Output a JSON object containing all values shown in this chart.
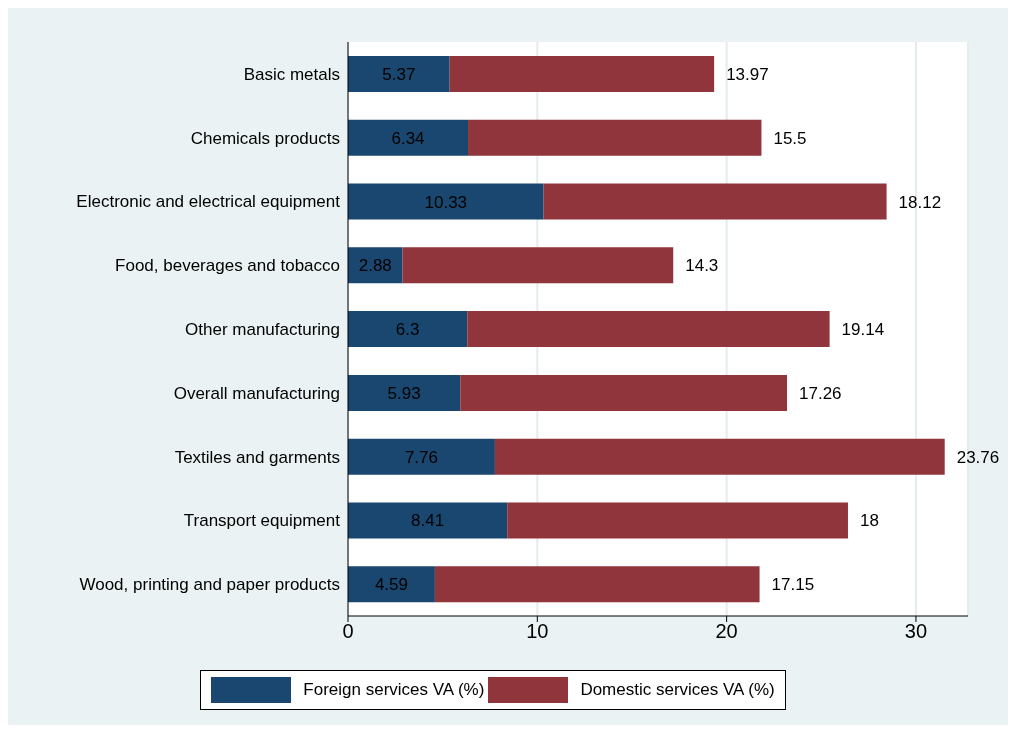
{
  "chart_data": {
    "type": "bar",
    "orientation": "horizontal",
    "stacked": true,
    "categories": [
      "Basic metals",
      "Chemicals products",
      "Electronic and electrical equipment",
      "Food, beverages and tobacco",
      "Other manufacturing",
      "Overall manufacturing",
      "Textiles and garments",
      "Transport equipment",
      "Wood, printing and paper products"
    ],
    "series": [
      {
        "name": "Foreign services VA (%)",
        "color": "#1a476f",
        "values": [
          5.37,
          6.34,
          10.33,
          2.88,
          6.3,
          5.93,
          7.76,
          8.41,
          4.59
        ]
      },
      {
        "name": "Domestic services VA (%)",
        "color": "#90353b",
        "values": [
          13.97,
          15.5,
          18.12,
          14.3,
          19.14,
          17.26,
          23.76,
          18,
          17.15
        ]
      }
    ],
    "xlim": [
      0,
      32.75
    ],
    "xticks": [
      0,
      10,
      20,
      30
    ],
    "grid": "x",
    "legend": "bottom",
    "data_labels": true
  }
}
